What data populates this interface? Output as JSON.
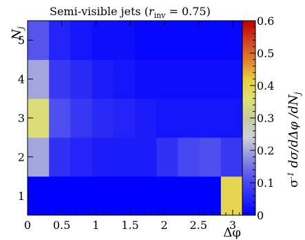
{
  "chart_data": {
    "type": "heatmap",
    "title": "Semi-visible jets (r_inv = 0.75)",
    "title_parts": {
      "main": "Semi-visible jets (",
      "var": "r",
      "sub": "inv",
      "rest": " = 0.75)"
    },
    "xlabel": "Δφ",
    "ylabel": "N_j",
    "ylabel_parts": {
      "main": "N",
      "sub": "j"
    },
    "colorbar_label": "σ⁻¹ dσ/dΔφ /dN_j",
    "colorbar_label_parts": {
      "sigma": "σ",
      "exp": "-1",
      "body": " dσ/dΔφ /dN",
      "sub": "j"
    },
    "xlim": [
      0,
      3.1416
    ],
    "ylim": [
      0.5,
      5.5
    ],
    "zlim": [
      0,
      0.6
    ],
    "x_ticks": [
      0,
      0.5,
      1,
      1.5,
      2,
      2.5,
      3
    ],
    "x_tick_labels": [
      "0",
      "0.5",
      "1",
      "1.5",
      "2",
      "2.5",
      "3"
    ],
    "y_ticks": [
      1,
      2,
      3,
      4,
      5
    ],
    "y_tick_labels": [
      "1",
      "2",
      "3",
      "4",
      "5"
    ],
    "z_ticks": [
      0,
      0.1,
      0.2,
      0.3,
      0.4,
      0.5,
      0.6
    ],
    "z_tick_labels": [
      "0",
      "0.1",
      "0.2",
      "0.3",
      "0.4",
      "0.5",
      "0.6"
    ],
    "x_bins": 10,
    "y_bins": [
      1,
      2,
      3,
      4,
      5
    ],
    "values": [
      [
        0.0,
        0.0,
        0.0,
        0.0,
        0.0,
        0.0,
        0.0,
        0.0,
        0.0,
        0.4
      ],
      [
        0.2,
        0.07,
        0.05,
        0.04,
        0.04,
        0.04,
        0.07,
        0.1,
        0.11,
        0.08
      ],
      [
        0.35,
        0.11,
        0.08,
        0.06,
        0.05,
        0.04,
        0.03,
        0.03,
        0.03,
        0.03
      ],
      [
        0.2,
        0.08,
        0.06,
        0.04,
        0.03,
        0.02,
        0.02,
        0.02,
        0.02,
        0.02
      ],
      [
        0.12,
        0.05,
        0.03,
        0.02,
        0.02,
        0.01,
        0.01,
        0.01,
        0.01,
        0.01
      ]
    ],
    "colormap": [
      "#0000ff",
      "#2a2af6",
      "#5555ee",
      "#9090e0",
      "#d0d0d8",
      "#c8c8a0",
      "#e0e070",
      "#e8d040",
      "#e08030",
      "#d04020",
      "#c00000"
    ],
    "grid": false
  }
}
